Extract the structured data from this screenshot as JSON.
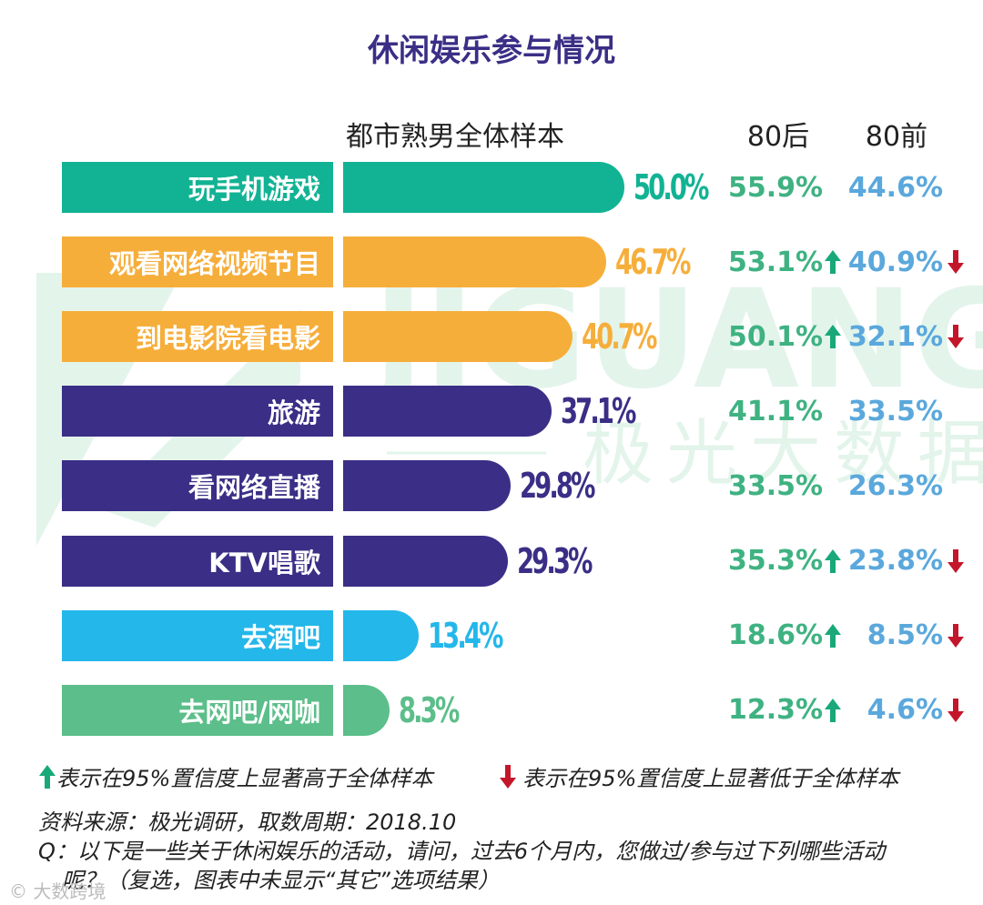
{
  "title": "休闲娱乐参与情况",
  "watermark": {
    "brand": "JIGUANG",
    "cn": "极光大数据"
  },
  "colors": {
    "teal": "#12b394",
    "orange": "#f6ae3b",
    "purple": "#3a2e86",
    "cyan": "#24b7ea",
    "green": "#5cbe8a",
    "up": "#19a87a",
    "down": "#c4162a",
    "h80_text": "#3fb282",
    "q80_text": "#5aa8dc"
  },
  "chart_data": {
    "type": "bar",
    "orientation": "horizontal",
    "title": "休闲娱乐参与情况",
    "column_headers": {
      "total": "都市熟男全体样本",
      "after80": "80后",
      "before80": "80前"
    },
    "xlim": [
      0,
      100
    ],
    "categories": [
      "玩手机游戏",
      "观看网络视频节目",
      "到电影院看电影",
      "旅游",
      "看网络直播",
      "KTV唱歌",
      "去酒吧",
      "去网吧/网咖"
    ],
    "values": [
      50.0,
      46.7,
      40.7,
      37.1,
      29.8,
      29.3,
      13.4,
      8.3
    ],
    "labels": [
      "50.0%",
      "46.7%",
      "40.7%",
      "37.1%",
      "29.8%",
      "29.3%",
      "13.4%",
      "8.3%"
    ],
    "bar_colors": [
      "teal",
      "orange",
      "orange",
      "purple",
      "purple",
      "purple",
      "cyan",
      "green"
    ],
    "series": [
      {
        "name": "80后",
        "values": [
          55.9,
          53.1,
          50.1,
          41.1,
          33.5,
          35.3,
          18.6,
          12.3
        ],
        "labels": [
          "55.9%",
          "53.1%",
          "50.1%",
          "41.1%",
          "33.5%",
          "35.3%",
          "18.6%",
          "12.3%"
        ],
        "significance": [
          "",
          "up",
          "up",
          "",
          "",
          "up",
          "up",
          "up"
        ]
      },
      {
        "name": "80前",
        "values": [
          44.6,
          40.9,
          32.1,
          33.5,
          26.3,
          23.8,
          8.5,
          4.6
        ],
        "labels": [
          "44.6%",
          "40.9%",
          "32.1%",
          "33.5%",
          "26.3%",
          "23.8%",
          "8.5%",
          "4.6%"
        ],
        "significance": [
          "",
          "down",
          "down",
          "",
          "",
          "down",
          "down",
          "down"
        ]
      }
    ]
  },
  "legend": {
    "up_text": "表示在95%置信度上显著高于全体样本",
    "down_text": "表示在95%置信度上显著低于全体样本"
  },
  "footnotes": {
    "source": "资料来源：极光调研，取数周期：2018.10",
    "question_line1": "Q：以下是一些关于休闲娱乐的活动，请问，过去6个月内，您做过/参与过下列哪些活动",
    "question_line2": "呢？（复选，图表中未显示“其它”选项结果）"
  },
  "corner_mark": "© 大数跨境"
}
